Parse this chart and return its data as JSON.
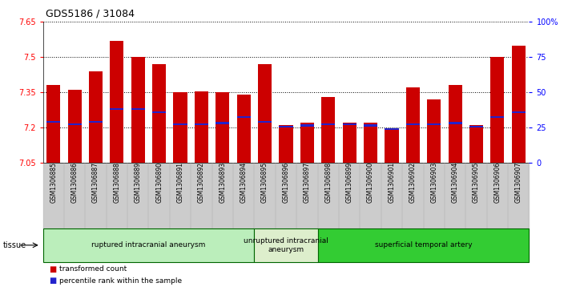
{
  "title": "GDS5186 / 31084",
  "samples": [
    "GSM1306885",
    "GSM1306886",
    "GSM1306887",
    "GSM1306888",
    "GSM1306889",
    "GSM1306890",
    "GSM1306891",
    "GSM1306892",
    "GSM1306893",
    "GSM1306894",
    "GSM1306895",
    "GSM1306896",
    "GSM1306897",
    "GSM1306898",
    "GSM1306899",
    "GSM1306900",
    "GSM1306901",
    "GSM1306902",
    "GSM1306903",
    "GSM1306904",
    "GSM1306905",
    "GSM1306906",
    "GSM1306907"
  ],
  "bar_values": [
    7.38,
    7.36,
    7.44,
    7.57,
    7.5,
    7.47,
    7.35,
    7.355,
    7.35,
    7.34,
    7.47,
    7.21,
    7.22,
    7.33,
    7.22,
    7.22,
    7.19,
    7.37,
    7.32,
    7.38,
    7.21,
    7.5,
    7.55
  ],
  "percentile_values": [
    7.225,
    7.215,
    7.225,
    7.28,
    7.28,
    7.265,
    7.215,
    7.215,
    7.22,
    7.245,
    7.225,
    7.205,
    7.21,
    7.215,
    7.215,
    7.21,
    7.195,
    7.215,
    7.215,
    7.22,
    7.205,
    7.245,
    7.265
  ],
  "y_min": 7.05,
  "y_max": 7.65,
  "y_ticks": [
    7.05,
    7.2,
    7.35,
    7.5,
    7.65
  ],
  "y_right_ticks": [
    0,
    25,
    50,
    75,
    100
  ],
  "bar_color": "#cc0000",
  "percentile_color": "#2222cc",
  "bar_bottom": 7.05,
  "groups": [
    {
      "label": "ruptured intracranial aneurysm",
      "start": 0,
      "end": 10,
      "color": "#bbeebb"
    },
    {
      "label": "unruptured intracranial\naneurysm",
      "start": 10,
      "end": 13,
      "color": "#ddeecc"
    },
    {
      "label": "superficial temporal artery",
      "start": 13,
      "end": 23,
      "color": "#33cc33"
    }
  ],
  "group_border_color": "#006600",
  "xtick_bg_color": "#cccccc",
  "plot_bg_color": "#ffffff",
  "title_fontsize": 9,
  "tick_fontsize": 7,
  "label_fontsize": 7
}
